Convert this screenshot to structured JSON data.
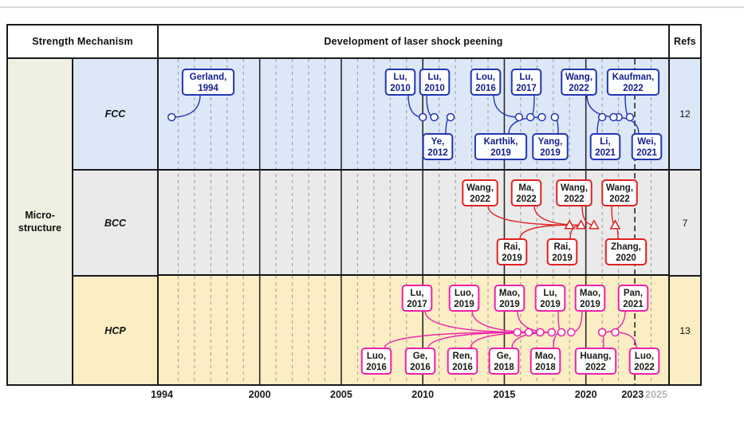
{
  "header": {
    "strength": "Strength Mechanism",
    "development": "Development of laser shock peening",
    "refs": "Refs"
  },
  "group": {
    "line1": "Micro-",
    "line2": "structure"
  },
  "axis": {
    "year_min": 1994,
    "year_max": 2025,
    "solid_years": [
      2000,
      2005,
      2010,
      2015,
      2020
    ],
    "dashed_year": 2023,
    "ticks": [
      {
        "year": 1994,
        "label": "1994",
        "muted": false,
        "align": "center"
      },
      {
        "year": 2000,
        "label": "2000",
        "muted": false,
        "align": "center"
      },
      {
        "year": 2005,
        "label": "2005",
        "muted": false,
        "align": "center"
      },
      {
        "year": 2010,
        "label": "2010",
        "muted": false,
        "align": "center"
      },
      {
        "year": 2015,
        "label": "2015",
        "muted": false,
        "align": "center"
      },
      {
        "year": 2020,
        "label": "2020",
        "muted": false,
        "align": "center"
      },
      {
        "year": 2023,
        "label": "2023",
        "muted": false,
        "align": "center"
      },
      {
        "year": 2025,
        "label": "2025",
        "muted": true,
        "align": "right"
      }
    ]
  },
  "rows": [
    {
      "label": "FCC",
      "refs": "12",
      "band": "#dce8f8",
      "accent": "#2336b4",
      "text_color": "#141e8c",
      "marker": "circle",
      "pubs": [
        {
          "name": "Gerland,",
          "year": "1994",
          "slot": "top",
          "bx": 62,
          "my": 1994.6
        },
        {
          "name": "Lu,",
          "year": "2010",
          "slot": "top",
          "bx": 303,
          "my": 2010.0
        },
        {
          "name": "Lu,",
          "year": "2010",
          "slot": "top",
          "bx": 346,
          "my": 2010.7
        },
        {
          "name": "Lou,",
          "year": "2016",
          "slot": "top",
          "bx": 410,
          "my": 2015.9
        },
        {
          "name": "Lu,",
          "year": "2017",
          "slot": "top",
          "bx": 461,
          "my": 2016.6
        },
        {
          "name": "Wang,",
          "year": "2022",
          "slot": "top",
          "bx": 527,
          "my": 2022.0
        },
        {
          "name": "Kaufman,",
          "year": "2022",
          "slot": "top",
          "bx": 595,
          "my": 2022.7
        },
        {
          "name": "Ye,",
          "year": "2012",
          "slot": "bottom",
          "bx": 350,
          "my": 2011.7
        },
        {
          "name": "Karthik,",
          "year": "2019",
          "slot": "bottom",
          "bx": 429,
          "my": 2017.3
        },
        {
          "name": "Yang,",
          "year": "2019",
          "slot": "bottom",
          "bx": 491,
          "my": 2018.1
        },
        {
          "name": "Li,",
          "year": "2021",
          "slot": "bottom",
          "bx": 560,
          "my": 2021.0
        },
        {
          "name": "Wei,",
          "year": "2021",
          "slot": "bottom",
          "bx": 612,
          "my": 2021.7
        }
      ]
    },
    {
      "label": "BCC",
      "refs": "7",
      "band": "#eaeaea",
      "accent": "#e02222",
      "text_color": "#1a1a1a",
      "marker": "triangle",
      "pubs": [
        {
          "name": "Wang,",
          "year": "2022",
          "slot": "top",
          "bx": 403,
          "my": 2019.0
        },
        {
          "name": "Ma,",
          "year": "2022",
          "slot": "top",
          "bx": 461,
          "my": 2019.7
        },
        {
          "name": "Wang,",
          "year": "2022",
          "slot": "top",
          "bx": 521,
          "my": 2020.5
        },
        {
          "name": "Wang,",
          "year": "2022",
          "slot": "top",
          "bx": 578,
          "my": 2021.8
        },
        {
          "name": "Rai,",
          "year": "2019",
          "slot": "bottom",
          "bx": 443,
          "my": 2019.0
        },
        {
          "name": "Rai,",
          "year": "2019",
          "slot": "bottom",
          "bx": 506,
          "my": 2019.7
        },
        {
          "name": "Zhang,",
          "year": "2020",
          "slot": "bottom",
          "bx": 586,
          "my": 2021.8
        }
      ]
    },
    {
      "label": "HCP",
      "refs": "13",
      "band": "#fbedc4",
      "accent": "#ee22aa",
      "text_color": "#1a1a1a",
      "marker": "circle",
      "pubs": [
        {
          "name": "Lu,",
          "year": "2017",
          "slot": "top",
          "bx": 324,
          "my": 2016.5
        },
        {
          "name": "Luo,",
          "year": "2019",
          "slot": "top",
          "bx": 383,
          "my": 2017.2
        },
        {
          "name": "Mao,",
          "year": "2019",
          "slot": "top",
          "bx": 440,
          "my": 2017.9
        },
        {
          "name": "Lu,",
          "year": "2019",
          "slot": "top",
          "bx": 491,
          "my": 2018.5
        },
        {
          "name": "Mao,",
          "year": "2019",
          "slot": "top",
          "bx": 541,
          "my": 2019.1
        },
        {
          "name": "Pan,",
          "year": "2021",
          "slot": "top",
          "bx": 595,
          "my": 2021.0
        },
        {
          "name": "Luo,",
          "year": "2016",
          "slot": "bottom",
          "bx": 273,
          "my": 2015.8
        },
        {
          "name": "Ge,",
          "year": "2016",
          "slot": "bottom",
          "bx": 328,
          "my": 2016.5
        },
        {
          "name": "Ren,",
          "year": "2016",
          "slot": "bottom",
          "bx": 381,
          "my": 2017.2
        },
        {
          "name": "Ge,",
          "year": "2018",
          "slot": "bottom",
          "bx": 433,
          "my": 2017.9
        },
        {
          "name": "Mao,",
          "year": "2018",
          "slot": "bottom",
          "bx": 485,
          "my": 2018.5
        },
        {
          "name": "Huang,",
          "year": "2022",
          "slot": "bottom",
          "bx": 548,
          "my": 2021.0
        },
        {
          "name": "Luo,",
          "year": "2022",
          "slot": "bottom",
          "bx": 609,
          "my": 2021.8
        }
      ]
    }
  ]
}
